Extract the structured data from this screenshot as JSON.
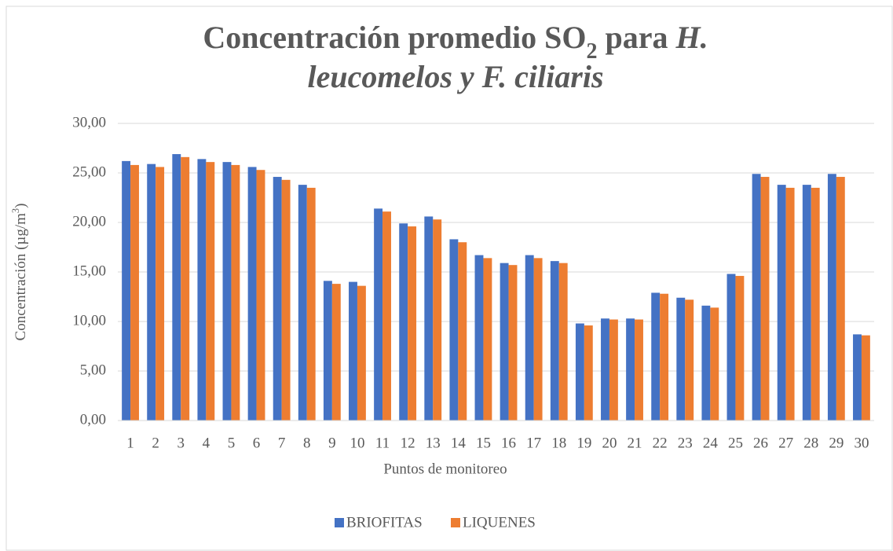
{
  "chart_data": {
    "type": "bar",
    "title": [
      [
        {
          "text": "Concentración promedio SO"
        },
        {
          "text": "2",
          "style": "sub"
        },
        {
          "text": " para "
        },
        {
          "text": "H.",
          "style": "italic"
        }
      ],
      [
        {
          "text": "leucomelos y F. ciliaris",
          "style": "italic"
        }
      ]
    ],
    "ylabel": [
      {
        "text": "Concentración  (µg/m"
      },
      {
        "text": "3",
        "style": "sup"
      },
      {
        "text": ")"
      }
    ],
    "xlabel": "Puntos de monitoreo",
    "categories": [
      "1",
      "2",
      "3",
      "4",
      "5",
      "6",
      "7",
      "8",
      "9",
      "10",
      "11",
      "12",
      "13",
      "14",
      "15",
      "16",
      "17",
      "18",
      "19",
      "20",
      "21",
      "22",
      "23",
      "24",
      "25",
      "26",
      "27",
      "28",
      "29",
      "30"
    ],
    "series": [
      {
        "name": "BRIOFITAS",
        "color": "#4472c4",
        "values": [
          26.2,
          25.9,
          26.9,
          26.4,
          26.1,
          25.6,
          24.6,
          23.8,
          14.1,
          14.0,
          21.4,
          19.9,
          20.6,
          18.3,
          16.7,
          15.9,
          16.7,
          16.1,
          9.8,
          10.3,
          10.3,
          12.9,
          12.4,
          11.6,
          14.8,
          24.9,
          23.8,
          23.8,
          24.9,
          8.7
        ]
      },
      {
        "name": "LIQUENES",
        "color": "#ed7d31",
        "values": [
          25.8,
          25.6,
          26.6,
          26.1,
          25.8,
          25.3,
          24.3,
          23.5,
          13.8,
          13.6,
          21.1,
          19.6,
          20.3,
          18.0,
          16.4,
          15.7,
          16.4,
          15.9,
          9.6,
          10.2,
          10.2,
          12.8,
          12.2,
          11.4,
          14.6,
          24.6,
          23.5,
          23.5,
          24.6,
          8.6
        ]
      }
    ],
    "ylim": [
      0,
      30
    ],
    "yticks": [
      {
        "value": 0,
        "label": "0,00"
      },
      {
        "value": 5,
        "label": "5,00"
      },
      {
        "value": 10,
        "label": "10,00"
      },
      {
        "value": 15,
        "label": "15,00"
      },
      {
        "value": 20,
        "label": "20,00"
      },
      {
        "value": 25,
        "label": "25,00"
      },
      {
        "value": 30,
        "label": "30,00"
      }
    ],
    "grid": true,
    "legend": "bottom"
  }
}
